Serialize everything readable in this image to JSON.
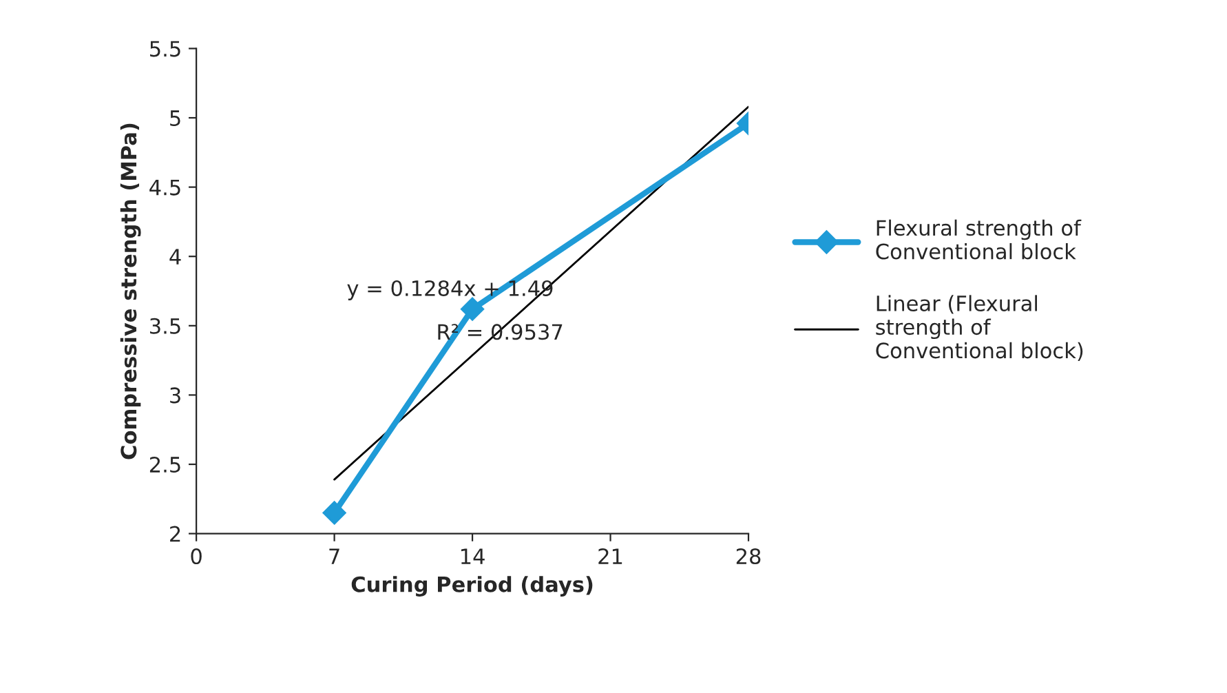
{
  "chart_data": {
    "type": "line",
    "xlabel": "Curing Period (days)",
    "ylabel": "Compressive strength (MPa)",
    "xlim": [
      0,
      28
    ],
    "xticks": [
      0,
      7,
      14,
      21,
      28
    ],
    "ylim": [
      2,
      5.5
    ],
    "yticks": [
      2,
      2.5,
      3,
      3.5,
      4,
      4.5,
      5,
      5.5
    ],
    "grid": false,
    "legend": "right",
    "marker": "diamond",
    "line_style": "solid",
    "series": [
      {
        "name": "Flexural strength of Conventional block",
        "color": "#1f9bd7",
        "x": [
          7,
          14,
          28
        ],
        "values": [
          2.15,
          3.62,
          4.96
        ]
      },
      {
        "name": "Linear (Flexural strength of Conventional block)",
        "color": "#000000",
        "type": "line",
        "marker": "none",
        "x": [
          7,
          28
        ],
        "values": [
          2.39,
          5.08
        ]
      }
    ],
    "annotations": [
      "y = 0.1284x + 1.49",
      "R² = 0.9537"
    ]
  }
}
